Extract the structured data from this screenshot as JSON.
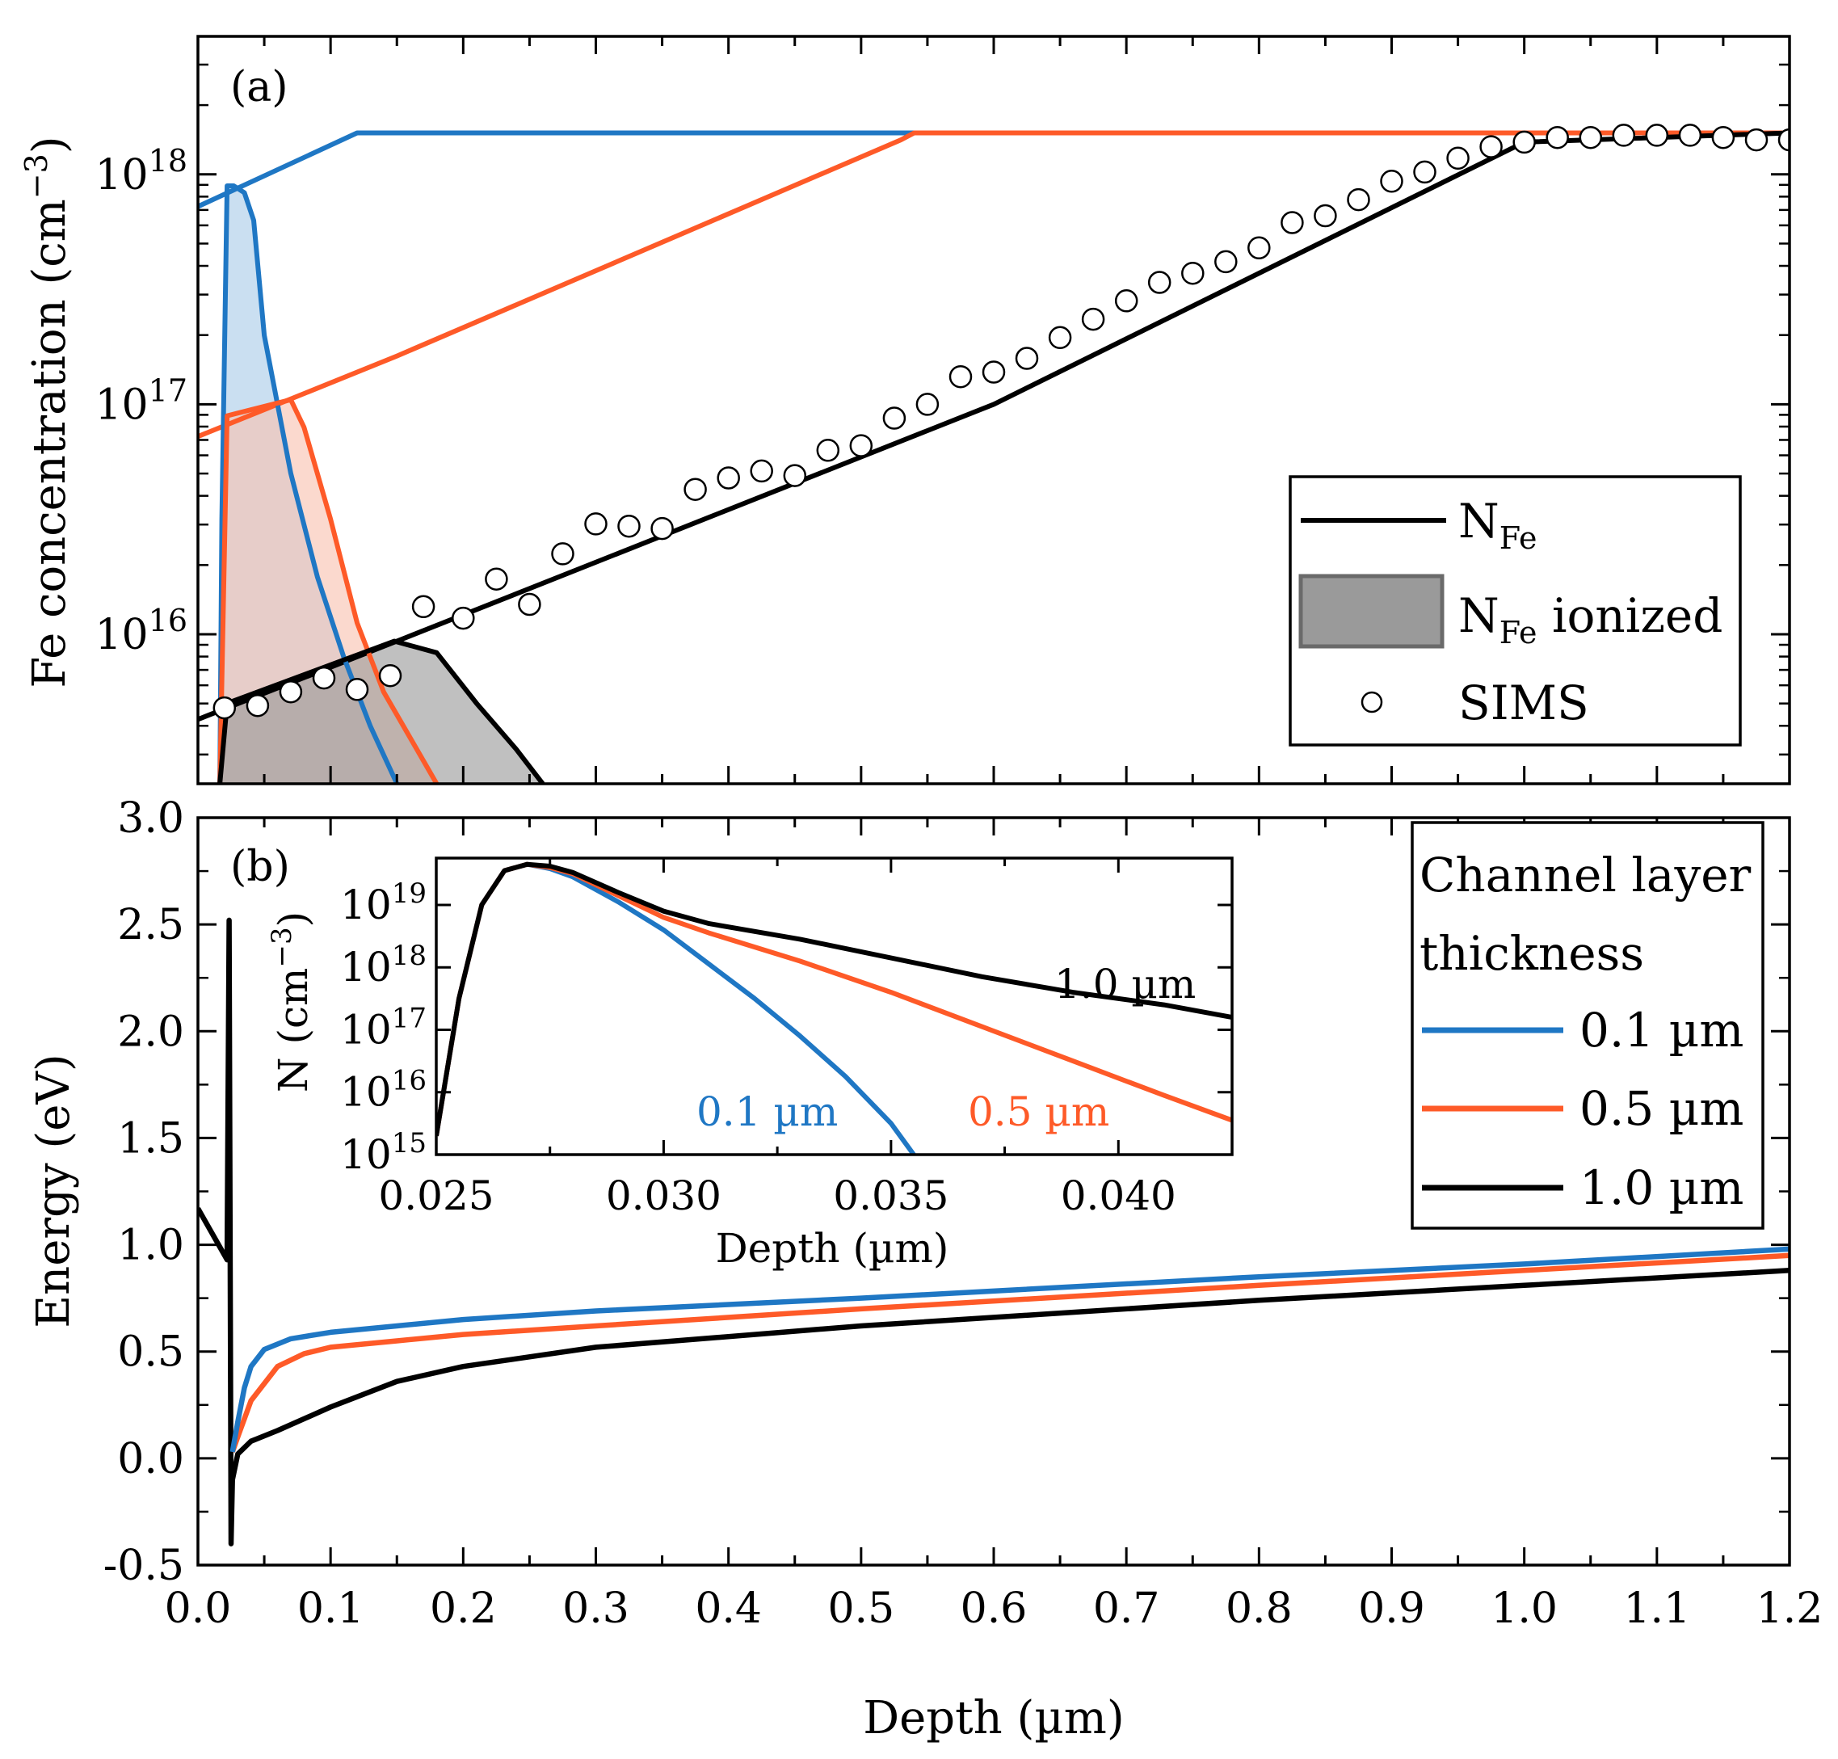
{
  "colors": {
    "blue": "#1f77c4",
    "orange": "#fe5a28",
    "black": "#000000",
    "blue_fill": "#a9cbe8",
    "orange_fill": "#f9c2b0",
    "gray_fill": "#9a9a9a"
  },
  "chart_data": [
    {
      "type": "line",
      "panel_label": "(a)",
      "ylabel_main": "Fe concentration (cm",
      "ylabel_exp": "−3",
      "ylabel_close": ")",
      "yscale": "log",
      "xlim": [
        0.0,
        1.2
      ],
      "ylim_log10": [
        15.35,
        18.6
      ],
      "yticks": [
        {
          "base": "10",
          "exp": "16",
          "log": 16
        },
        {
          "base": "10",
          "exp": "17",
          "log": 17
        },
        {
          "base": "10",
          "exp": "18",
          "log": 18
        }
      ],
      "series": [
        {
          "name": "N_Fe 0.1 µm",
          "color": "blue",
          "x": [
            0.0,
            0.12,
            1.2
          ],
          "log10_y": [
            17.86,
            18.18,
            18.18
          ]
        },
        {
          "name": "N_Fe 0.5 µm",
          "color": "orange",
          "x": [
            0.0,
            0.15,
            0.53,
            0.54,
            1.2
          ],
          "log10_y": [
            16.86,
            17.21,
            18.15,
            18.18,
            18.18
          ]
        },
        {
          "name": "N_Fe 1.0 µm",
          "color": "black",
          "x": [
            0.0,
            0.15,
            0.6,
            1.0,
            1.2
          ],
          "log10_y": [
            15.63,
            15.97,
            17.0,
            18.14,
            18.18
          ]
        },
        {
          "name": "N_Fe ionized 0.1 µm",
          "color": "blue",
          "fill": "blue_fill",
          "x": [
            0.0165,
            0.018,
            0.022,
            0.027,
            0.035,
            0.042,
            0.05,
            0.07,
            0.09,
            0.11,
            0.13,
            0.15
          ],
          "log10_y": [
            15.35,
            16.5,
            17.95,
            17.95,
            17.92,
            17.8,
            17.3,
            16.7,
            16.25,
            15.9,
            15.6,
            15.35
          ]
        },
        {
          "name": "N_Fe ionized 0.5 µm",
          "color": "orange",
          "fill": "orange_fill",
          "x": [
            0.0165,
            0.022,
            0.07,
            0.08,
            0.1,
            0.12,
            0.14,
            0.16,
            0.18
          ],
          "log10_y": [
            15.35,
            16.95,
            17.02,
            16.9,
            16.5,
            16.05,
            15.75,
            15.55,
            15.35
          ]
        },
        {
          "name": "N_Fe ionized 1.0 µm",
          "color": "black",
          "fill": "gray_fill",
          "x": [
            0.0165,
            0.022,
            0.148,
            0.18,
            0.21,
            0.24,
            0.26
          ],
          "log10_y": [
            15.35,
            15.7,
            15.97,
            15.92,
            15.7,
            15.5,
            15.35
          ]
        }
      ],
      "sims": {
        "x": [
          0.02,
          0.045,
          0.07,
          0.095,
          0.12,
          0.145,
          0.17,
          0.2,
          0.225,
          0.25,
          0.275,
          0.3,
          0.325,
          0.35,
          0.375,
          0.4,
          0.425,
          0.45,
          0.475,
          0.5,
          0.525,
          0.55,
          0.575,
          0.6,
          0.625,
          0.65,
          0.675,
          0.7,
          0.725,
          0.75,
          0.775,
          0.8,
          0.825,
          0.85,
          0.875,
          0.9,
          0.925,
          0.95,
          0.975,
          1.0,
          1.025,
          1.05,
          1.075,
          1.1,
          1.125,
          1.15,
          1.175,
          1.2
        ],
        "log10_y": [
          15.68,
          15.69,
          15.75,
          15.81,
          15.76,
          15.82,
          16.12,
          16.07,
          16.24,
          16.13,
          16.35,
          16.48,
          16.47,
          16.46,
          16.63,
          16.68,
          16.71,
          16.69,
          16.8,
          16.82,
          16.94,
          17.0,
          17.12,
          17.14,
          17.2,
          17.29,
          17.37,
          17.45,
          17.53,
          17.57,
          17.62,
          17.68,
          17.79,
          17.82,
          17.89,
          17.97,
          18.01,
          18.07,
          18.12,
          18.14,
          18.16,
          18.16,
          18.17,
          18.17,
          18.17,
          18.16,
          18.15,
          18.15
        ]
      },
      "legend": {
        "position": "bottom-right",
        "items": [
          {
            "label": "N",
            "sub": "Fe",
            "suffix": ""
          },
          {
            "label": "N",
            "sub": "Fe",
            "suffix": " ionized"
          },
          {
            "label": "SIMS",
            "sub": "",
            "suffix": ""
          }
        ]
      }
    },
    {
      "type": "line",
      "panel_label": "(b)",
      "xlabel": "Depth (µm)",
      "ylabel": "Energy (eV)",
      "xlim": [
        0.0,
        1.2
      ],
      "ylim": [
        -0.5,
        3.0
      ],
      "xticks": [
        "0.0",
        "0.1",
        "0.2",
        "0.3",
        "0.4",
        "0.5",
        "0.6",
        "0.7",
        "0.8",
        "0.9",
        "1.0",
        "1.1",
        "1.2"
      ],
      "yticks": [
        "-0.5",
        "0.0",
        "0.5",
        "1.0",
        "1.5",
        "2.0",
        "2.5",
        "3.0"
      ],
      "series": [
        {
          "name": "1.0 µm",
          "color": "black",
          "x": [
            0.0,
            0.022,
            0.0235,
            0.025,
            0.026,
            0.03,
            0.04,
            0.06,
            0.1,
            0.15,
            0.2,
            0.3,
            0.5,
            0.8,
            1.0,
            1.2
          ],
          "y": [
            1.17,
            0.93,
            2.52,
            -0.4,
            -0.1,
            0.02,
            0.08,
            0.13,
            0.24,
            0.36,
            0.43,
            0.52,
            0.62,
            0.74,
            0.81,
            0.88
          ]
        },
        {
          "name": "0.5 µm",
          "color": "orange",
          "x": [
            0.026,
            0.03,
            0.04,
            0.06,
            0.08,
            0.1,
            0.15,
            0.2,
            0.3,
            0.5,
            0.8,
            1.0,
            1.2
          ],
          "y": [
            0.03,
            0.1,
            0.27,
            0.43,
            0.49,
            0.52,
            0.55,
            0.58,
            0.62,
            0.7,
            0.81,
            0.88,
            0.95
          ]
        },
        {
          "name": "0.1 µm",
          "color": "blue",
          "x": [
            0.026,
            0.03,
            0.035,
            0.04,
            0.05,
            0.07,
            0.1,
            0.15,
            0.2,
            0.3,
            0.5,
            0.8,
            1.0,
            1.2
          ],
          "y": [
            0.03,
            0.17,
            0.33,
            0.43,
            0.51,
            0.56,
            0.59,
            0.62,
            0.65,
            0.69,
            0.75,
            0.85,
            0.91,
            0.98
          ]
        }
      ],
      "legend": {
        "position": "top-right",
        "title_line1": "Channel layer",
        "title_line2": "thickness",
        "items": [
          "0.1 µm",
          "0.5 µm",
          "1.0 µm"
        ]
      }
    },
    {
      "type": "line",
      "role": "inset",
      "xlabel": "Depth (µm)",
      "ylabel_main": "N (cm",
      "ylabel_exp": "−3",
      "ylabel_close": ")",
      "yscale": "log",
      "xlim": [
        0.025,
        0.0425
      ],
      "ylim_log10": [
        15.0,
        19.75
      ],
      "xticks": [
        "0.025",
        "0.030",
        "0.035",
        "0.040"
      ],
      "yticks": [
        {
          "base": "10",
          "exp": "15",
          "log": 15
        },
        {
          "base": "10",
          "exp": "16",
          "log": 16
        },
        {
          "base": "10",
          "exp": "17",
          "log": 17
        },
        {
          "base": "10",
          "exp": "18",
          "log": 18
        },
        {
          "base": "10",
          "exp": "19",
          "log": 19
        }
      ],
      "series": [
        {
          "name": "0.1 µm",
          "color": "blue",
          "x": [
            0.025,
            0.0255,
            0.026,
            0.0265,
            0.027,
            0.0275,
            0.028,
            0.029,
            0.03,
            0.031,
            0.032,
            0.033,
            0.034,
            0.035,
            0.0355
          ],
          "y_log10": [
            15.3,
            17.5,
            19.0,
            19.55,
            19.65,
            19.58,
            19.45,
            19.05,
            18.6,
            18.05,
            17.5,
            16.9,
            16.25,
            15.5,
            15.0
          ]
        },
        {
          "name": "0.5 µm",
          "color": "orange",
          "x": [
            0.025,
            0.0255,
            0.026,
            0.0265,
            0.027,
            0.0275,
            0.028,
            0.029,
            0.03,
            0.031,
            0.033,
            0.035,
            0.037,
            0.039,
            0.041,
            0.0425
          ],
          "y_log10": [
            15.3,
            17.5,
            19.0,
            19.55,
            19.65,
            19.6,
            19.5,
            19.15,
            18.8,
            18.55,
            18.1,
            17.6,
            17.05,
            16.5,
            15.95,
            15.55
          ]
        },
        {
          "name": "1.0 µm",
          "color": "black",
          "x": [
            0.025,
            0.0255,
            0.026,
            0.0265,
            0.027,
            0.0275,
            0.028,
            0.029,
            0.03,
            0.031,
            0.033,
            0.035,
            0.037,
            0.039,
            0.041,
            0.0425
          ],
          "y_log10": [
            15.3,
            17.5,
            19.0,
            19.55,
            19.65,
            19.62,
            19.52,
            19.2,
            18.9,
            18.7,
            18.45,
            18.15,
            17.85,
            17.6,
            17.4,
            17.2
          ]
        }
      ],
      "annotations": [
        {
          "text": "1.0 µm",
          "color": "black"
        },
        {
          "text": "0.1 µm",
          "color": "blue"
        },
        {
          "text": "0.5 µm",
          "color": "orange"
        }
      ]
    }
  ]
}
